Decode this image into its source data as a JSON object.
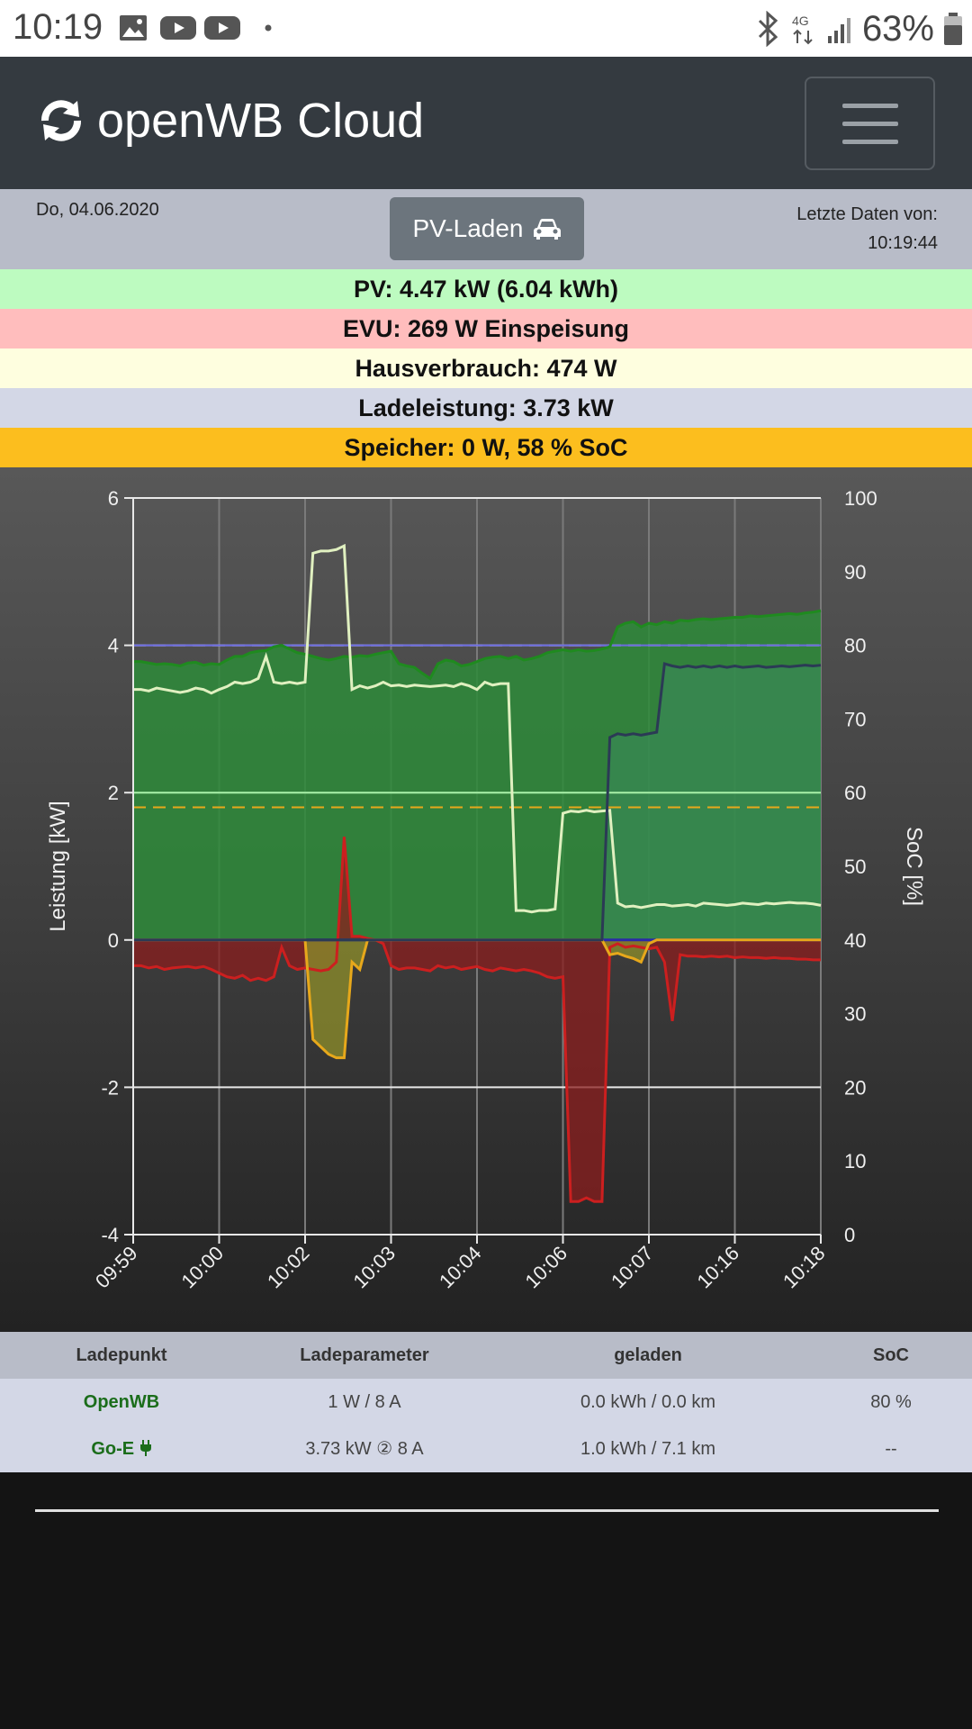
{
  "statusbar": {
    "time": "10:19",
    "battery_text": "63%",
    "network_label": "4G"
  },
  "navbar": {
    "brand": "openWB Cloud"
  },
  "info": {
    "date": "Do, 04.06.2020",
    "mode_button": "PV-Laden",
    "last_data_label": "Letzte Daten von:",
    "last_data_time": "10:19:44"
  },
  "summary": {
    "pv": "PV: 4.47 kW (6.04 kWh)",
    "evu": "EVU: 269 W Einspeisung",
    "haus": "Hausverbrauch: 474 W",
    "lade": "Ladeleistung: 3.73 kW",
    "speicher": "Speicher: 0 W, 58 % SoC"
  },
  "colors": {
    "pv_bg": "#bdfbc0",
    "evu_bg": "#ffbdbd",
    "haus_bg": "#fefedf",
    "lade_bg": "#d3d7e6",
    "speicher_bg": "#fcbe1e",
    "pv_line": "#1f8a1f",
    "evu_line": "#cc1f1f",
    "house_line": "#e0f0c0",
    "charge_line": "#2b3a55",
    "battery_line": "#e7a81b"
  },
  "chart_data": {
    "type": "area",
    "ylabel_left": "Leistung [kW]",
    "ylabel_right": "SoC [%]",
    "ylim_left": [
      -4,
      6
    ],
    "ylim_right": [
      0,
      100
    ],
    "yticks_left": [
      "6",
      "4",
      "2",
      "0",
      "-2",
      "-4"
    ],
    "yticks_right": [
      "100",
      "90",
      "80",
      "70",
      "60",
      "50",
      "40",
      "30",
      "20",
      "10",
      "0"
    ],
    "xticks": [
      "09:59",
      "10:00",
      "10:02",
      "10:03",
      "10:04",
      "10:06",
      "10:07",
      "10:16",
      "10:18"
    ],
    "x": [
      0,
      1,
      2,
      3,
      4,
      5,
      6,
      7,
      8,
      9,
      10,
      11,
      12,
      13,
      14,
      15,
      16,
      17,
      18,
      19,
      20,
      21,
      22,
      23,
      24,
      25,
      26,
      27,
      28,
      29,
      30,
      31,
      32,
      33,
      34,
      35,
      36,
      37,
      38,
      39,
      40,
      41,
      42,
      43,
      44,
      45,
      46,
      47,
      48,
      49,
      50,
      51,
      52,
      53,
      54,
      55,
      56,
      57,
      58,
      59,
      60,
      61,
      62,
      63,
      64,
      65,
      66,
      67,
      68,
      69,
      70,
      71,
      72,
      73,
      74,
      75,
      76,
      77,
      78,
      79,
      80,
      81,
      82,
      83,
      84,
      85,
      86,
      87,
      88
    ],
    "series": [
      {
        "key": "pv",
        "values": [
          3.78,
          3.78,
          3.76,
          3.74,
          3.75,
          3.74,
          3.72,
          3.76,
          3.77,
          3.73,
          3.75,
          3.74,
          3.8,
          3.85,
          3.85,
          3.9,
          3.92,
          3.93,
          3.98,
          4.0,
          3.95,
          3.9,
          3.88,
          3.85,
          3.82,
          3.8,
          3.82,
          3.85,
          3.84,
          3.86,
          3.85,
          3.88,
          3.9,
          3.92,
          3.75,
          3.72,
          3.7,
          3.62,
          3.55,
          3.75,
          3.8,
          3.78,
          3.72,
          3.74,
          3.78,
          3.82,
          3.84,
          3.85,
          3.82,
          3.85,
          3.8,
          3.82,
          3.85,
          3.9,
          3.92,
          3.94,
          3.92,
          3.94,
          3.92,
          3.93,
          3.95,
          3.98,
          4.25,
          4.3,
          4.32,
          4.25,
          4.3,
          4.28,
          4.32,
          4.3,
          4.34,
          4.33,
          4.35,
          4.36,
          4.35,
          4.36,
          4.37,
          4.38,
          4.38,
          4.4,
          4.39,
          4.4,
          4.41,
          4.42,
          4.43,
          4.42,
          4.44,
          4.45,
          4.47
        ]
      },
      {
        "key": "evu",
        "values": [
          -0.35,
          -0.35,
          -0.38,
          -0.36,
          -0.4,
          -0.38,
          -0.37,
          -0.36,
          -0.38,
          -0.36,
          -0.4,
          -0.45,
          -0.5,
          -0.52,
          -0.48,
          -0.55,
          -0.52,
          -0.55,
          -0.5,
          -0.1,
          -0.35,
          -0.4,
          -0.38,
          -0.4,
          -0.42,
          -0.4,
          -0.3,
          1.4,
          0.05,
          0.05,
          0.02,
          0.0,
          -0.05,
          -0.35,
          -0.4,
          -0.38,
          -0.38,
          -0.4,
          -0.42,
          -0.35,
          -0.38,
          -0.36,
          -0.4,
          -0.38,
          -0.36,
          -0.4,
          -0.42,
          -0.38,
          -0.4,
          -0.42,
          -0.4,
          -0.42,
          -0.45,
          -0.5,
          -0.52,
          -0.5,
          -3.55,
          -3.55,
          -3.5,
          -3.55,
          -3.55,
          -0.1,
          -0.05,
          -0.1,
          -0.08,
          -0.1,
          -0.12,
          -0.1,
          -0.3,
          -1.1,
          -0.2,
          -0.22,
          -0.22,
          -0.23,
          -0.22,
          -0.23,
          -0.22,
          -0.24,
          -0.23,
          -0.24,
          -0.24,
          -0.25,
          -0.24,
          -0.25,
          -0.25,
          -0.26,
          -0.26,
          -0.27,
          -0.27
        ]
      },
      {
        "key": "house",
        "values": [
          3.4,
          3.4,
          3.38,
          3.42,
          3.4,
          3.38,
          3.36,
          3.38,
          3.42,
          3.4,
          3.35,
          3.4,
          3.44,
          3.5,
          3.48,
          3.5,
          3.55,
          3.85,
          3.5,
          3.48,
          3.5,
          3.48,
          3.5,
          5.25,
          5.28,
          5.28,
          5.3,
          5.35,
          3.4,
          3.45,
          3.42,
          3.45,
          3.5,
          3.45,
          3.46,
          3.44,
          3.46,
          3.45,
          3.44,
          3.45,
          3.46,
          3.44,
          3.48,
          3.45,
          3.4,
          3.5,
          3.46,
          3.48,
          3.48,
          0.4,
          0.4,
          0.38,
          0.4,
          0.4,
          0.42,
          1.72,
          1.75,
          1.74,
          1.76,
          1.74,
          1.75,
          1.76,
          0.5,
          0.45,
          0.46,
          0.44,
          0.46,
          0.48,
          0.48,
          0.46,
          0.47,
          0.48,
          0.46,
          0.5,
          0.49,
          0.48,
          0.47,
          0.48,
          0.5,
          0.49,
          0.48,
          0.5,
          0.49,
          0.5,
          0.51,
          0.5,
          0.5,
          0.49,
          0.47
        ]
      },
      {
        "key": "charge",
        "values": [
          0,
          0,
          0,
          0,
          0,
          0,
          0,
          0,
          0,
          0,
          0,
          0,
          0,
          0,
          0,
          0,
          0,
          0,
          0,
          0,
          0,
          0,
          0,
          0,
          0,
          0,
          0,
          0,
          0,
          0,
          0,
          0,
          0,
          0,
          0,
          0,
          0,
          0,
          0,
          0,
          0,
          0,
          0,
          0,
          0,
          0,
          0,
          0,
          0,
          0,
          0,
          0,
          0,
          0,
          0,
          0,
          0,
          0,
          0,
          0,
          0,
          2.75,
          2.8,
          2.78,
          2.8,
          2.78,
          2.8,
          2.82,
          3.75,
          3.72,
          3.7,
          3.72,
          3.7,
          3.72,
          3.7,
          3.72,
          3.7,
          3.72,
          3.7,
          3.71,
          3.72,
          3.7,
          3.71,
          3.72,
          3.71,
          3.72,
          3.73,
          3.72,
          3.73
        ]
      },
      {
        "key": "battery",
        "values": [
          0,
          0,
          0,
          0,
          0,
          0,
          0,
          0,
          0,
          0,
          0,
          0,
          0,
          0,
          0,
          0,
          0,
          0,
          0,
          0,
          0,
          0,
          0,
          -1.35,
          -1.45,
          -1.55,
          -1.6,
          -1.6,
          -0.3,
          -0.4,
          0,
          0,
          0,
          0,
          0,
          0,
          0,
          0,
          0,
          0,
          0,
          0,
          0,
          0,
          0,
          0,
          0,
          0,
          0,
          0,
          0,
          0,
          0,
          0,
          0,
          0,
          0,
          0,
          0,
          0,
          0,
          -0.2,
          -0.18,
          -0.22,
          -0.25,
          -0.3,
          -0.05,
          0,
          0,
          0,
          0,
          0,
          0,
          0,
          0,
          0,
          0,
          0,
          0,
          0,
          0,
          0,
          0,
          0,
          0,
          0,
          0,
          0,
          0
        ]
      }
    ],
    "reference_lines": [
      {
        "axis": "right",
        "value": 80,
        "style": "dashed",
        "color": "#ffffff"
      },
      {
        "axis": "right",
        "value": 58,
        "style": "dashed",
        "color": "#e7a81b"
      },
      {
        "axis": "left",
        "value": 4,
        "style": "solid",
        "color": "#6a6ae0"
      },
      {
        "axis": "left",
        "value": 2,
        "style": "solid",
        "color": "#a8f0a8"
      }
    ],
    "grid": true
  },
  "table": {
    "headers": [
      "Ladepunkt",
      "Ladeparameter",
      "geladen",
      "SoC"
    ],
    "rows": [
      [
        "OpenWB",
        "1 W / 8 A",
        "0.0 kWh / 0.0 km",
        "80 %"
      ],
      [
        "Go-E",
        "3.73 kW ② 8 A",
        "1.0 kWh / 7.1 km",
        "--"
      ]
    ]
  }
}
